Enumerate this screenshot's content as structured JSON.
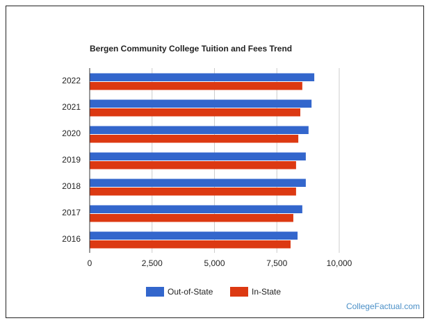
{
  "chart_data": {
    "type": "bar",
    "orientation": "horizontal",
    "title": "Bergen Community College Tuition and Fees Trend",
    "categories": [
      "2022",
      "2021",
      "2020",
      "2019",
      "2018",
      "2017",
      "2016"
    ],
    "series": [
      {
        "name": "Out-of-State",
        "color": "#3366cc",
        "values": [
          9000,
          8890,
          8770,
          8660,
          8660,
          8520,
          8330
        ]
      },
      {
        "name": "In-State",
        "color": "#dc3912",
        "values": [
          8520,
          8440,
          8360,
          8270,
          8270,
          8160,
          8050
        ]
      }
    ],
    "xlim": [
      0,
      10000
    ],
    "xticks": [
      0,
      {
        "value": 2500,
        "label": "2,500"
      },
      {
        "value": 5000,
        "label": "5,000"
      },
      {
        "value": 7500,
        "label": "7,500"
      },
      {
        "value": 10000,
        "label": "10,000"
      }
    ],
    "grid": true,
    "legend": "bottom"
  },
  "watermark": "CollegeFactual.com"
}
